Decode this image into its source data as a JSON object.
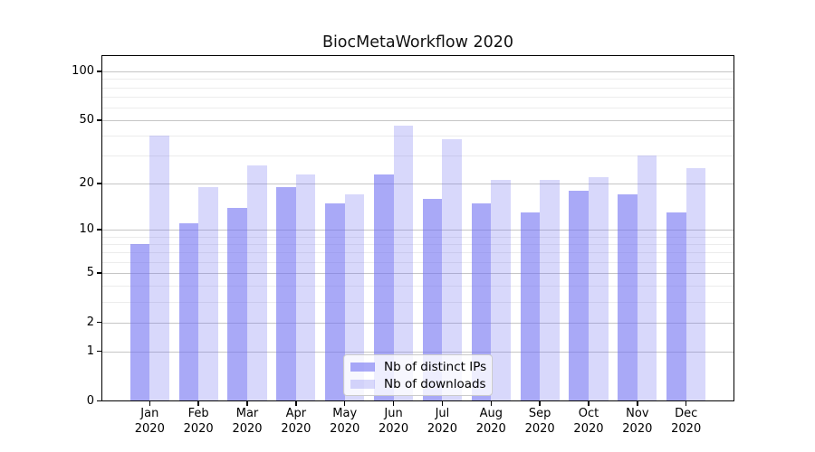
{
  "chart_data": {
    "type": "bar",
    "title": "BiocMetaWorkflow 2020",
    "x_year": "2020",
    "categories": [
      "Jan",
      "Feb",
      "Mar",
      "Apr",
      "May",
      "Jun",
      "Jul",
      "Aug",
      "Sep",
      "Oct",
      "Nov",
      "Dec"
    ],
    "series": [
      {
        "name": "Nb of distinct IPs",
        "color": "rgba(112,112,242,0.60)",
        "values": [
          8,
          11,
          14,
          19,
          15,
          23,
          16,
          15,
          13,
          18,
          17,
          13
        ]
      },
      {
        "name": "Nb of downloads",
        "color": "rgba(112,112,242,0.27)",
        "values": [
          40,
          19,
          26,
          23,
          17,
          46,
          38,
          21,
          21,
          22,
          30,
          25
        ]
      }
    ],
    "yscale": "log1p",
    "ylim": [
      0,
      126
    ],
    "y_major_ticks": [
      0,
      1,
      2,
      5,
      10,
      20,
      50,
      100
    ],
    "y_minor_ticks": [
      3,
      4,
      6,
      7,
      8,
      9,
      30,
      40,
      60,
      70,
      80,
      90
    ],
    "grid": true,
    "legend_position": "lower center"
  }
}
